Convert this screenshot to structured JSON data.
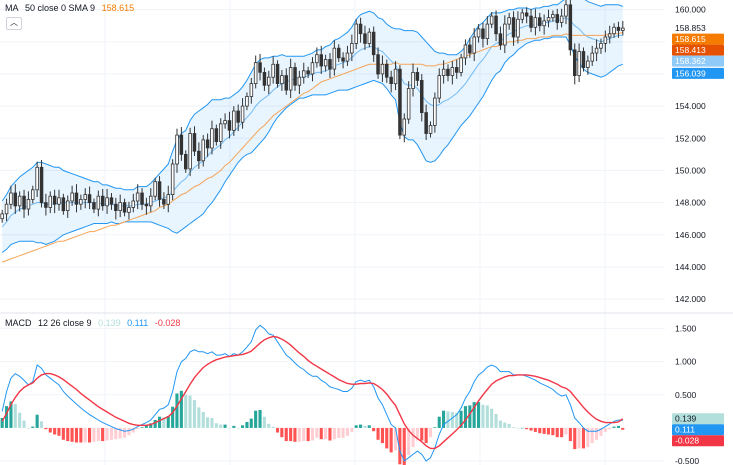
{
  "legend_top": {
    "label": "MA",
    "params": "50 close 0 SMA 9",
    "value": "158.615",
    "value_color": "#f57c00"
  },
  "legend_bottom": {
    "label": "MACD",
    "params": "12 26 close 9",
    "v1": "0.139",
    "v2": "0.111",
    "v3": "-0.028",
    "c1": "#b2dfdb",
    "c2": "#2196f3",
    "c3": "#f23645"
  },
  "collapse_icon": "chevron-up-icon",
  "colors": {
    "up": "#089981",
    "down": "#f23645",
    "candle": "#333333",
    "band": "#2196f3",
    "ma": "#f5a55a",
    "macd": "#2196f3",
    "signal": "#f23645",
    "hist_pos": "#26a69a",
    "hist_pos_light": "#b2dfdb",
    "hist_neg": "#ff5252",
    "hist_neg_light": "#ffcdd2",
    "grid": "#f0f3fa",
    "axis_text": "#131722"
  },
  "chart_data": [
    {
      "type": "candlestick",
      "ylim": [
        141.2,
        160.6
      ],
      "y_ticks": [
        "160.000",
        "158.000",
        "156.000",
        "154.000",
        "152.000",
        "150.000",
        "148.000",
        "146.000",
        "144.000",
        "142.000"
      ],
      "y_tick_values": [
        160,
        158,
        156,
        154,
        152,
        150,
        148,
        146,
        144,
        142
      ],
      "price_badges": [
        {
          "text": "158.853",
          "value": 158.853,
          "color": "#ffffff",
          "text_color": "#131722"
        },
        {
          "text": "158.615",
          "value": 158.615,
          "color": "#f57c00",
          "text_color": "#ffffff"
        },
        {
          "text": "158.413",
          "value": 158.413,
          "color": "#e65100",
          "text_color": "#ffffff"
        },
        {
          "text": "158.362",
          "value": 158.362,
          "color": "#90caf9",
          "text_color": "#ffffff"
        },
        {
          "text": "156.039",
          "value": 156.039,
          "color": "#2196f3",
          "text_color": "#ffffff"
        }
      ],
      "close": [
        147.3,
        147.9,
        148.6,
        147.8,
        148.4,
        147.6,
        148.2,
        148.8,
        150.2,
        148.0,
        147.7,
        148.4,
        147.9,
        148.3,
        147.5,
        148.1,
        148.6,
        147.9,
        148.2,
        148.5,
        148.0,
        147.6,
        148.4,
        147.8,
        148.3,
        147.9,
        147.5,
        148.0,
        147.4,
        147.7,
        148.1,
        148.6,
        147.9,
        147.8,
        148.4,
        149.3,
        148.2,
        147.9,
        148.5,
        150.4,
        152.2,
        151.0,
        150.1,
        152.3,
        151.2,
        150.6,
        151.9,
        151.4,
        152.6,
        151.8,
        152.9,
        153.1,
        152.5,
        153.7,
        153.0,
        154.0,
        154.6,
        155.4,
        156.7,
        156.1,
        155.3,
        155.8,
        156.6,
        155.4,
        155.9,
        155.0,
        156.4,
        155.3,
        155.8,
        156.2,
        156.0,
        156.7,
        157.2,
        156.5,
        156.9,
        156.3,
        157.6,
        157.0,
        156.8,
        157.3,
        157.9,
        159.1,
        158.5,
        157.9,
        158.6,
        157.2,
        156.0,
        156.6,
        155.8,
        155.4,
        156.3,
        152.2,
        153.2,
        155.1,
        156.1,
        155.6,
        153.6,
        152.3,
        152.8,
        154.5,
        155.9,
        156.3,
        155.9,
        156.4,
        156.1,
        157.0,
        157.8,
        157.3,
        158.3,
        158.8,
        158.2,
        159.1,
        159.6,
        158.5,
        157.8,
        159.1,
        159.5,
        158.3,
        159.4,
        159.8,
        159.6,
        158.9,
        159.5,
        159.0,
        159.3,
        159.5,
        159.7,
        159.2,
        159.6,
        160.3,
        157.5,
        155.9,
        157.4,
        156.4,
        156.8,
        157.3,
        157.6,
        157.9,
        158.3,
        158.5,
        158.9,
        158.7,
        158.85
      ],
      "sma": [
        146.5,
        146.8,
        147.2,
        147.4,
        147.6,
        147.7,
        147.8,
        147.9,
        148.0,
        148.0,
        147.9,
        147.9,
        147.9,
        148.0,
        148.0,
        148.0,
        148.0,
        148.0,
        148.0,
        148.0,
        148.0,
        148.0,
        148.0,
        147.9,
        147.9,
        147.9,
        147.8,
        147.8,
        147.8,
        147.8,
        147.8,
        147.9,
        147.9,
        147.9,
        148.0,
        148.1,
        148.2,
        148.3,
        148.4,
        148.7,
        149.0,
        149.3,
        149.5,
        149.9,
        150.2,
        150.4,
        150.6,
        150.9,
        151.2,
        151.4,
        151.6,
        151.9,
        152.1,
        152.4,
        152.7,
        153.0,
        153.3,
        153.6,
        154.0,
        154.3,
        154.5,
        154.7,
        155.0,
        155.2,
        155.4,
        155.5,
        155.6,
        155.7,
        155.8,
        155.8,
        155.9,
        156.0,
        156.1,
        156.1,
        156.2,
        156.3,
        156.5,
        156.6,
        156.7,
        156.8,
        157.0,
        157.3,
        157.5,
        157.6,
        157.7,
        157.7,
        157.5,
        157.4,
        157.1,
        156.8,
        156.6,
        155.9,
        155.4,
        155.3,
        155.3,
        155.1,
        154.7,
        154.3,
        154.1,
        154.0,
        154.1,
        154.3,
        154.4,
        154.6,
        154.8,
        155.1,
        155.4,
        155.8,
        156.2,
        156.6,
        156.9,
        157.3,
        157.7,
        157.9,
        158.0,
        158.3,
        158.5,
        158.6,
        158.8,
        158.9,
        159.0,
        159.0,
        159.1,
        159.1,
        159.2,
        159.2,
        159.3,
        159.3,
        159.4,
        159.5,
        159.3,
        159.0,
        158.8,
        158.5,
        158.3,
        158.2,
        158.1,
        158.0,
        158.1,
        158.2,
        158.3,
        158.4,
        158.4
      ],
      "ma50": [
        144.3,
        144.4,
        144.5,
        144.6,
        144.7,
        144.8,
        144.9,
        145.0,
        145.1,
        145.2,
        145.3,
        145.4,
        145.5,
        145.6,
        145.6,
        145.7,
        145.8,
        145.9,
        146.0,
        146.1,
        146.2,
        146.2,
        146.3,
        146.4,
        146.5,
        146.6,
        146.6,
        146.7,
        146.8,
        146.9,
        147.0,
        147.1,
        147.2,
        147.3,
        147.4,
        147.5,
        147.7,
        147.8,
        147.9,
        148.1,
        148.3,
        148.5,
        148.6,
        148.8,
        149.0,
        149.1,
        149.3,
        149.5,
        149.6,
        149.8,
        150.0,
        150.3,
        150.5,
        150.8,
        151.1,
        151.4,
        151.7,
        152.0,
        152.3,
        152.6,
        152.8,
        153.1,
        153.4,
        153.6,
        153.8,
        154.0,
        154.2,
        154.4,
        154.6,
        154.8,
        154.9,
        155.1,
        155.3,
        155.5,
        155.6,
        155.7,
        155.8,
        155.9,
        156.0,
        156.1,
        156.2,
        156.3,
        156.4,
        156.5,
        156.6,
        156.6,
        156.6,
        156.6,
        156.6,
        156.6,
        156.7,
        156.6,
        156.6,
        156.6,
        156.6,
        156.6,
        156.6,
        156.5,
        156.5,
        156.5,
        156.6,
        156.6,
        156.7,
        156.8,
        156.9,
        157.0,
        157.1,
        157.2,
        157.3,
        157.4,
        157.5,
        157.6,
        157.7,
        157.7,
        157.8,
        157.9,
        158.0,
        158.0,
        158.1,
        158.1,
        158.2,
        158.2,
        158.2,
        158.3,
        158.3,
        158.3,
        158.4,
        158.4,
        158.4,
        158.5,
        158.4,
        158.4,
        158.4,
        158.4,
        158.4,
        158.4,
        158.4,
        158.4,
        158.4,
        158.5,
        158.5,
        158.5,
        158.6
      ],
      "band_width": [
        1.6,
        1.7,
        1.8,
        1.9,
        2.0,
        2.1,
        2.2,
        2.3,
        2.5,
        2.5,
        2.5,
        2.4,
        2.3,
        2.2,
        2.0,
        1.9,
        1.8,
        1.7,
        1.6,
        1.5,
        1.4,
        1.3,
        1.3,
        1.2,
        1.2,
        1.1,
        1.1,
        1.1,
        1.0,
        1.0,
        1.0,
        1.1,
        1.1,
        1.1,
        1.2,
        1.4,
        1.6,
        1.8,
        2.0,
        2.5,
        2.9,
        3.0,
        3.0,
        3.2,
        3.3,
        3.3,
        3.3,
        3.2,
        3.2,
        3.0,
        2.8,
        2.6,
        2.4,
        2.3,
        2.2,
        2.2,
        2.3,
        2.5,
        2.6,
        2.6,
        2.5,
        2.3,
        2.1,
        1.9,
        1.8,
        1.6,
        1.5,
        1.4,
        1.3,
        1.3,
        1.3,
        1.3,
        1.4,
        1.4,
        1.5,
        1.5,
        1.6,
        1.6,
        1.7,
        1.8,
        1.9,
        2.1,
        2.2,
        2.2,
        2.2,
        2.1,
        2.0,
        2.0,
        2.0,
        2.1,
        2.2,
        2.9,
        3.3,
        3.4,
        3.4,
        3.5,
        3.6,
        3.7,
        3.6,
        3.4,
        3.2,
        3.0,
        2.8,
        2.6,
        2.4,
        2.3,
        2.3,
        2.4,
        2.4,
        2.4,
        2.3,
        2.2,
        2.1,
        1.9,
        1.8,
        1.6,
        1.5,
        1.4,
        1.3,
        1.2,
        1.1,
        1.0,
        1.0,
        1.0,
        1.0,
        1.0,
        1.0,
        1.0,
        1.1,
        1.2,
        1.5,
        1.9,
        2.1,
        2.2,
        2.2,
        2.2,
        2.2,
        2.2,
        2.2,
        2.1,
        2.0,
        1.9,
        1.8
      ]
    },
    {
      "type": "macd",
      "ylim": [
        -0.56,
        1.72
      ],
      "y_ticks": [
        "1.500",
        "1.000",
        "0.500",
        "-0.500"
      ],
      "y_tick_values": [
        1.5,
        1.0,
        0.5,
        -0.5
      ],
      "value_badges": [
        {
          "text": "0.139",
          "value": 0.139,
          "color": "#b2dfdb",
          "text_color": "#131722"
        },
        {
          "text": "0.111",
          "value": 0.111,
          "color": "#2196f3",
          "text_color": "#ffffff"
        },
        {
          "text": "-0.028",
          "value": -0.028,
          "color": "#f23645",
          "text_color": "#ffffff"
        }
      ],
      "macd": [
        0.25,
        0.55,
        0.75,
        0.82,
        0.78,
        0.72,
        0.65,
        0.7,
        0.95,
        0.9,
        0.8,
        0.75,
        0.7,
        0.65,
        0.55,
        0.48,
        0.42,
        0.36,
        0.3,
        0.25,
        0.2,
        0.16,
        0.12,
        0.08,
        0.05,
        0.02,
        -0.01,
        -0.03,
        -0.05,
        -0.04,
        -0.02,
        0.02,
        0.05,
        0.08,
        0.12,
        0.2,
        0.28,
        0.3,
        0.35,
        0.55,
        0.85,
        1.0,
        1.05,
        1.15,
        1.18,
        1.15,
        1.15,
        1.12,
        1.15,
        1.1,
        1.1,
        1.12,
        1.08,
        1.12,
        1.1,
        1.15,
        1.22,
        1.3,
        1.48,
        1.55,
        1.5,
        1.42,
        1.4,
        1.3,
        1.2,
        1.1,
        1.05,
        0.98,
        0.92,
        0.88,
        0.82,
        0.78,
        0.78,
        0.72,
        0.68,
        0.62,
        0.6,
        0.58,
        0.55,
        0.55,
        0.6,
        0.7,
        0.72,
        0.7,
        0.72,
        0.62,
        0.45,
        0.35,
        0.2,
        0.05,
        0.0,
        -0.35,
        -0.5,
        -0.45,
        -0.4,
        -0.35,
        -0.4,
        -0.5,
        -0.45,
        -0.3,
        -0.1,
        0.05,
        0.1,
        0.15,
        0.2,
        0.3,
        0.45,
        0.55,
        0.7,
        0.8,
        0.85,
        0.92,
        0.95,
        0.92,
        0.85,
        0.85,
        0.85,
        0.8,
        0.8,
        0.8,
        0.78,
        0.75,
        0.72,
        0.68,
        0.65,
        0.62,
        0.58,
        0.52,
        0.48,
        0.5,
        0.35,
        0.15,
        0.08,
        0.0,
        -0.05,
        -0.05,
        -0.05,
        -0.02,
        0.02,
        0.06,
        0.1,
        0.12,
        0.111
      ],
      "signal": [
        0.1,
        0.22,
        0.35,
        0.46,
        0.55,
        0.61,
        0.65,
        0.68,
        0.75,
        0.8,
        0.82,
        0.82,
        0.8,
        0.77,
        0.73,
        0.68,
        0.63,
        0.58,
        0.52,
        0.47,
        0.42,
        0.37,
        0.32,
        0.28,
        0.24,
        0.2,
        0.16,
        0.13,
        0.1,
        0.07,
        0.05,
        0.04,
        0.04,
        0.04,
        0.05,
        0.08,
        0.11,
        0.14,
        0.17,
        0.23,
        0.33,
        0.44,
        0.55,
        0.66,
        0.76,
        0.84,
        0.91,
        0.96,
        1.0,
        1.03,
        1.05,
        1.07,
        1.08,
        1.09,
        1.1,
        1.11,
        1.13,
        1.16,
        1.22,
        1.28,
        1.33,
        1.36,
        1.38,
        1.37,
        1.34,
        1.3,
        1.25,
        1.19,
        1.13,
        1.08,
        1.02,
        0.97,
        0.93,
        0.89,
        0.85,
        0.81,
        0.77,
        0.73,
        0.7,
        0.67,
        0.66,
        0.66,
        0.67,
        0.67,
        0.68,
        0.67,
        0.63,
        0.58,
        0.51,
        0.42,
        0.34,
        0.2,
        0.06,
        -0.04,
        -0.11,
        -0.16,
        -0.21,
        -0.27,
        -0.31,
        -0.31,
        -0.27,
        -0.21,
        -0.15,
        -0.09,
        -0.03,
        0.04,
        0.12,
        0.21,
        0.31,
        0.41,
        0.5,
        0.58,
        0.66,
        0.71,
        0.74,
        0.77,
        0.79,
        0.79,
        0.8,
        0.8,
        0.8,
        0.79,
        0.78,
        0.76,
        0.74,
        0.72,
        0.69,
        0.66,
        0.62,
        0.6,
        0.55,
        0.47,
        0.39,
        0.31,
        0.24,
        0.18,
        0.13,
        0.1,
        0.08,
        0.08,
        0.08,
        0.09,
        0.139
      ]
    }
  ]
}
